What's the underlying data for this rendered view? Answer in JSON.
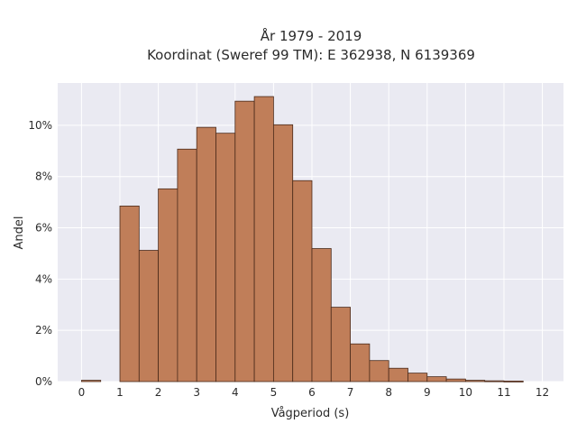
{
  "chart_data": {
    "type": "bar",
    "title_line1": "År 1979 - 2019",
    "title_line2": "Koordinat (Sweref 99 TM): E 362938, N 6139369",
    "xlabel": "Vågperiod (s)",
    "ylabel": "Andel",
    "bin_width": 0.5,
    "bins": [
      {
        "start": 0.0,
        "value": 0.0005
      },
      {
        "start": 0.5,
        "value": 0.0
      },
      {
        "start": 1.0,
        "value": 0.0685
      },
      {
        "start": 1.5,
        "value": 0.0512
      },
      {
        "start": 2.0,
        "value": 0.0752
      },
      {
        "start": 2.5,
        "value": 0.0907
      },
      {
        "start": 3.0,
        "value": 0.0992
      },
      {
        "start": 3.5,
        "value": 0.0969
      },
      {
        "start": 4.0,
        "value": 0.1094
      },
      {
        "start": 4.5,
        "value": 0.1112
      },
      {
        "start": 5.0,
        "value": 0.1002
      },
      {
        "start": 5.5,
        "value": 0.0784
      },
      {
        "start": 6.0,
        "value": 0.0519
      },
      {
        "start": 6.5,
        "value": 0.029
      },
      {
        "start": 7.0,
        "value": 0.0147
      },
      {
        "start": 7.5,
        "value": 0.0082
      },
      {
        "start": 8.0,
        "value": 0.0052
      },
      {
        "start": 8.5,
        "value": 0.0033
      },
      {
        "start": 9.0,
        "value": 0.0019
      },
      {
        "start": 9.5,
        "value": 0.001
      },
      {
        "start": 10.0,
        "value": 0.0005
      },
      {
        "start": 10.5,
        "value": 0.0003
      },
      {
        "start": 11.0,
        "value": 0.0002
      }
    ],
    "xlim": [
      -0.62,
      12.55
    ],
    "ylim": [
      0,
      0.1165
    ],
    "x_ticks": [
      {
        "value": 0,
        "label": "0"
      },
      {
        "value": 1,
        "label": "1"
      },
      {
        "value": 2,
        "label": "2"
      },
      {
        "value": 3,
        "label": "3"
      },
      {
        "value": 4,
        "label": "4"
      },
      {
        "value": 5,
        "label": "5"
      },
      {
        "value": 6,
        "label": "6"
      },
      {
        "value": 7,
        "label": "7"
      },
      {
        "value": 8,
        "label": "8"
      },
      {
        "value": 9,
        "label": "9"
      },
      {
        "value": 10,
        "label": "10"
      },
      {
        "value": 11,
        "label": "11"
      },
      {
        "value": 12,
        "label": "12"
      }
    ],
    "y_ticks": [
      {
        "value": 0.0,
        "label": "0%"
      },
      {
        "value": 0.02,
        "label": "2%"
      },
      {
        "value": 0.04,
        "label": "4%"
      },
      {
        "value": 0.06,
        "label": "6%"
      },
      {
        "value": 0.08,
        "label": "8%"
      },
      {
        "value": 0.1,
        "label": "10%"
      }
    ],
    "grid": true,
    "colors": {
      "bar_fill": "#c07e59",
      "bar_edge": "#4a2a1a",
      "plot_bg": "#eaeaf2",
      "grid": "#ffffff"
    }
  }
}
